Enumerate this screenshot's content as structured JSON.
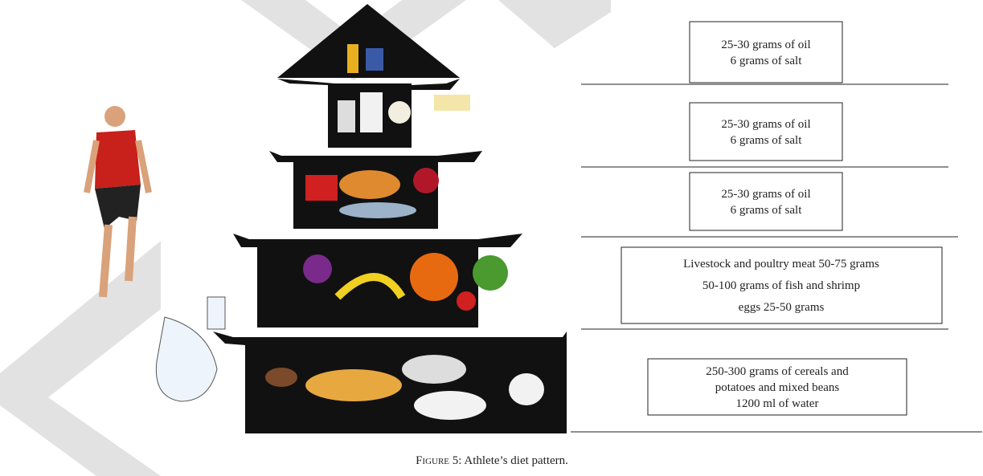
{
  "figure": {
    "tiers": [
      {
        "lines": [
          "25-30 grams of oil",
          "6 grams of salt"
        ]
      },
      {
        "lines": [
          "25-30 grams of oil",
          "6 grams of salt"
        ]
      },
      {
        "lines": [
          "25-30 grams of oil",
          "6 grams of salt"
        ]
      },
      {
        "lines": [
          "Livestock and poultry meat 50-75 grams",
          "50-100 grams of fish and shrimp",
          "eggs 25-50 grams"
        ]
      },
      {
        "lines": [
          "250-300 grams of cereals and",
          "potatoes and mixed beans",
          "1200 ml of water"
        ]
      }
    ],
    "caption": {
      "label": "Figure 5:",
      "text": "Athlete’s diet pattern."
    }
  }
}
